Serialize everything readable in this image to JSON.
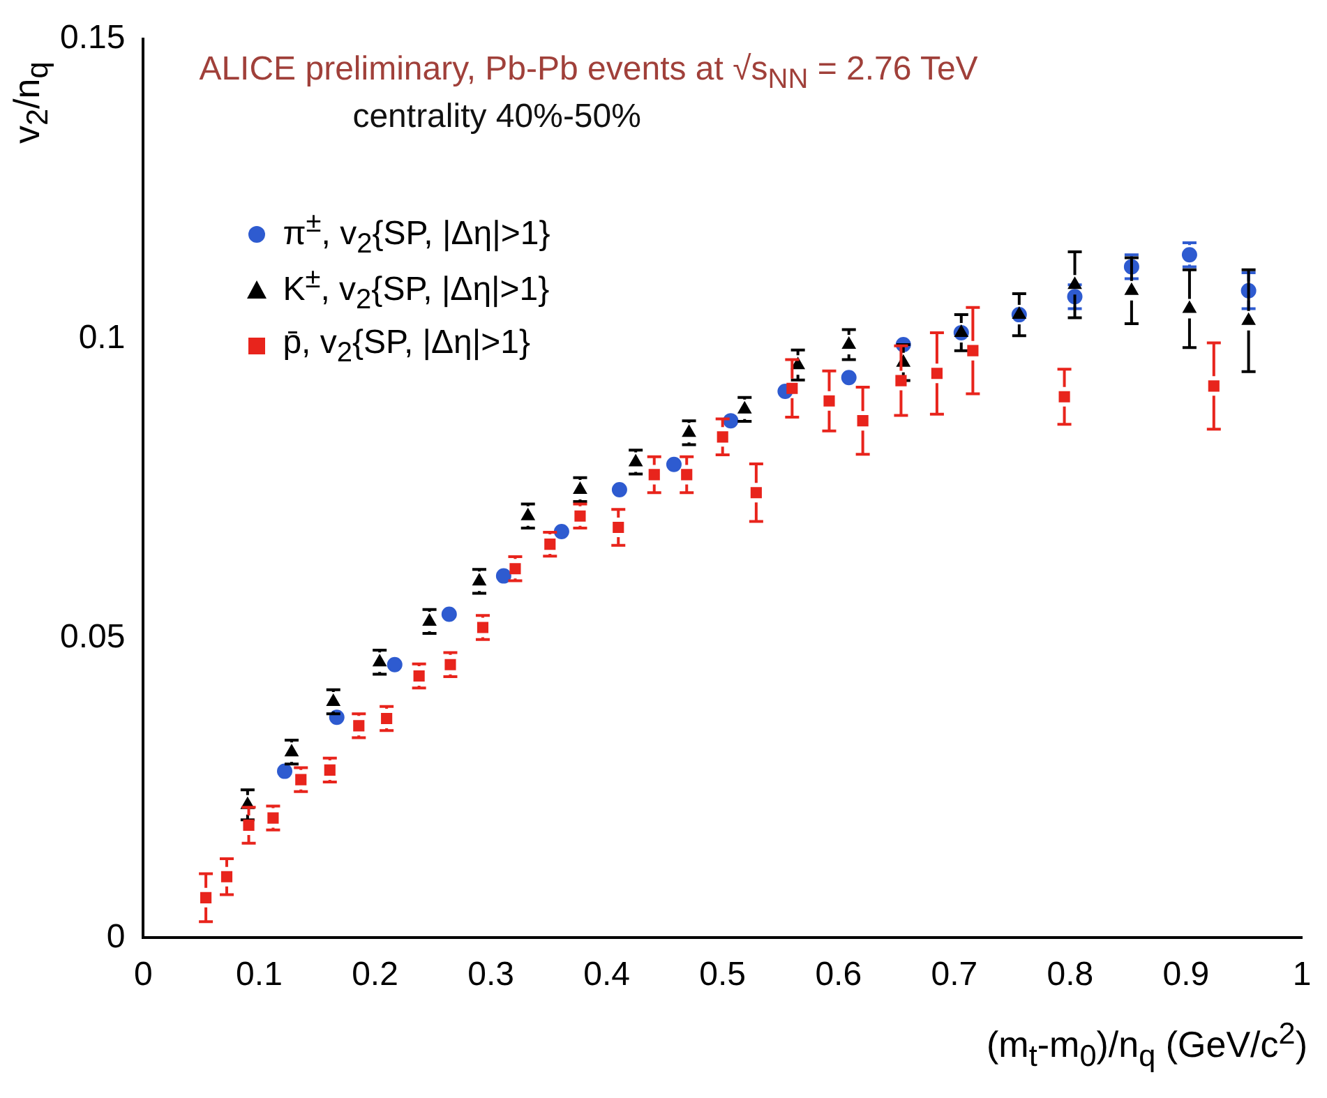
{
  "chart_data": {
    "type": "scatter",
    "title": "ALICE preliminary, Pb-Pb events at √s$_{NN}$ = 2.76 TeV",
    "subtitle": "centrality 40%-50%",
    "xlabel": "(m$_{t}$-m$_{0}$)/n$_{q}$ (GeV/c$^{2}$)",
    "ylabel": "v$_{2}$/n$_{q}$",
    "xlim": [
      0,
      1
    ],
    "xticks": [
      0,
      0.1,
      0.2,
      0.3,
      0.4,
      0.5,
      0.6,
      0.7,
      0.8,
      0.9,
      1
    ],
    "ylim": [
      0,
      0.15
    ],
    "yticks": [
      0,
      0.05,
      0.1,
      0.15
    ],
    "grid": false,
    "legend": "top left",
    "series": [
      {
        "name": "π$^{±}$, v$_{2}${SP, |Δη|>1}",
        "color": "#2e5bd0",
        "marker": "circle",
        "x": [
          0.122,
          0.167,
          0.217,
          0.264,
          0.311,
          0.361,
          0.411,
          0.458,
          0.507,
          0.554,
          0.609,
          0.656,
          0.706,
          0.756,
          0.804,
          0.853,
          0.903,
          0.954
        ],
        "values": [
          0.0278,
          0.0368,
          0.0456,
          0.054,
          0.0604,
          0.0678,
          0.0748,
          0.079,
          0.0863,
          0.0912,
          0.0935,
          0.099,
          0.101,
          0.104,
          0.107,
          0.112,
          0.114,
          0.108
        ],
        "errors": [
          null,
          null,
          null,
          null,
          null,
          null,
          null,
          null,
          null,
          null,
          null,
          null,
          null,
          null,
          0.002,
          0.002,
          0.002,
          0.003
        ]
      },
      {
        "name": "K$^{±}$, v$_{2}${SP, |Δη|>1}",
        "color": "#000000",
        "marker": "triangle",
        "x": [
          0.09,
          0.128,
          0.164,
          0.204,
          0.247,
          0.29,
          0.332,
          0.377,
          0.425,
          0.471,
          0.519,
          0.565,
          0.609,
          0.656,
          0.706,
          0.756,
          0.804,
          0.853,
          0.903,
          0.954
        ],
        "values": [
          0.0222,
          0.031,
          0.0394,
          0.046,
          0.0528,
          0.0595,
          0.0704,
          0.0748,
          0.0794,
          0.0843,
          0.0882,
          0.0956,
          0.099,
          0.096,
          0.101,
          0.104,
          0.109,
          0.108,
          0.105,
          0.103
        ],
        "errors": [
          0.0025,
          0.002,
          0.002,
          0.002,
          0.002,
          0.002,
          0.002,
          0.002,
          0.002,
          0.002,
          0.002,
          0.0025,
          0.0025,
          0.003,
          0.003,
          0.0035,
          0.0055,
          0.0055,
          0.0065,
          0.0085
        ]
      },
      {
        "name": "p̄, v$_{2}${SP, |Δη|>1}",
        "color": "#e8241c",
        "marker": "square",
        "x": [
          0.054,
          0.072,
          0.091,
          0.112,
          0.136,
          0.161,
          0.186,
          0.21,
          0.238,
          0.265,
          0.293,
          0.321,
          0.351,
          0.377,
          0.41,
          0.441,
          0.469,
          0.5,
          0.529,
          0.56,
          0.592,
          0.621,
          0.654,
          0.685,
          0.716,
          0.795,
          0.924
        ],
        "values": [
          0.0067,
          0.0102,
          0.0188,
          0.02,
          0.0264,
          0.028,
          0.0354,
          0.0366,
          0.0437,
          0.0456,
          0.0518,
          0.0616,
          0.0657,
          0.0704,
          0.0685,
          0.0773,
          0.0773,
          0.0836,
          0.0743,
          0.0917,
          0.0896,
          0.0863,
          0.093,
          0.0942,
          0.098,
          0.0903,
          0.0921
        ],
        "errors": [
          0.004,
          0.003,
          0.003,
          0.002,
          0.002,
          0.002,
          0.002,
          0.002,
          0.002,
          0.002,
          0.002,
          0.002,
          0.002,
          0.002,
          0.003,
          0.003,
          0.003,
          0.003,
          0.0048,
          0.0048,
          0.005,
          0.0056,
          0.0058,
          0.0068,
          0.0072,
          0.0046,
          0.0072
        ]
      }
    ]
  }
}
